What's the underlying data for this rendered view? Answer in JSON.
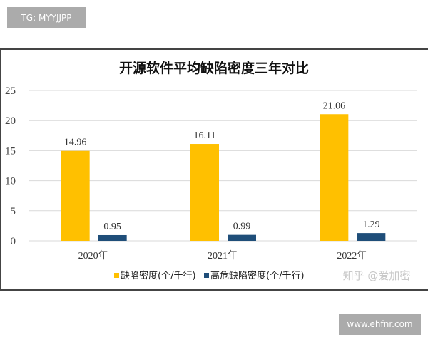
{
  "watermark_tag": "TG: MYYJJPP",
  "watermark_site": "www.ehfnr.com",
  "watermark_zhihu": "知乎 @爱加密",
  "colors": {
    "defect_density": "#FFC000",
    "high_risk_density": "#1F4E79"
  },
  "chart_data": {
    "type": "bar",
    "title": "开源软件平均缺陷密度三年对比",
    "categories": [
      "2020年",
      "2021年",
      "2022年"
    ],
    "series": [
      {
        "name": "缺陷密度(个/千行)",
        "values": [
          14.96,
          16.11,
          21.06
        ],
        "labels": [
          "14.96",
          "16.11",
          "21.06"
        ]
      },
      {
        "name": "高危缺陷密度(个/千行)",
        "values": [
          0.95,
          0.99,
          1.29
        ],
        "labels": [
          "0.95",
          "0.99",
          "1.29"
        ]
      }
    ],
    "yticks": [
      "0",
      "5",
      "10",
      "15",
      "20",
      "25"
    ],
    "ylim": [
      0,
      25
    ],
    "grid": true,
    "legend": "bottom"
  }
}
